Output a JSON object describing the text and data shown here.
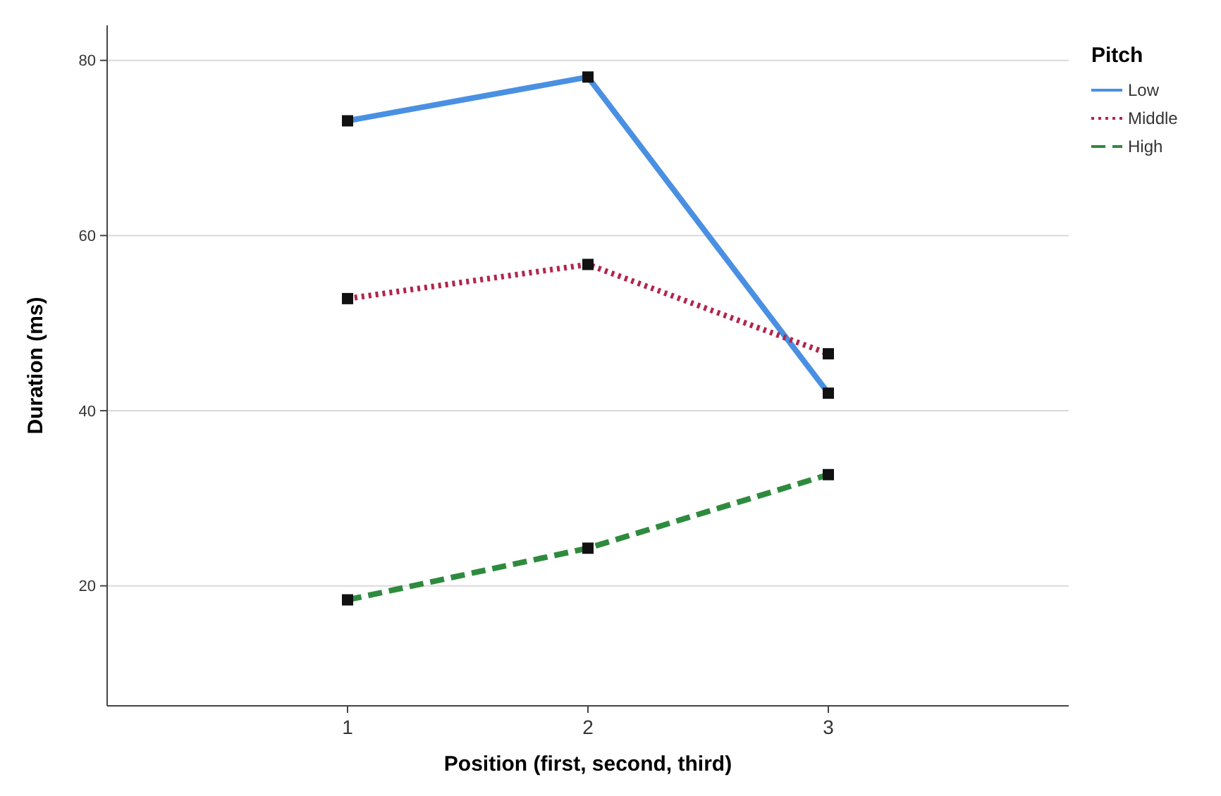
{
  "chart_data": {
    "type": "line",
    "xlabel": "Position (first, second, third)",
    "ylabel": "Duration (ms)",
    "legend_title": "Pitch",
    "categories": [
      "1",
      "2",
      "3"
    ],
    "series": [
      {
        "name": "Low",
        "color": "#4a90e2",
        "values": [
          73.1,
          78.1,
          42.0
        ],
        "line_style": "solid"
      },
      {
        "name": "Middle",
        "color": "#b3244b",
        "values": [
          52.8,
          56.7,
          46.5
        ],
        "line_style": "dotted"
      },
      {
        "name": "High",
        "color": "#2e8b3e",
        "values": [
          18.4,
          24.3,
          32.7
        ],
        "line_style": "dashed"
      }
    ],
    "ylim": [
      6.3,
      84
    ],
    "yticks": [
      20,
      40,
      60,
      80
    ],
    "grid": "y",
    "legend": "top right",
    "marker": "square"
  }
}
